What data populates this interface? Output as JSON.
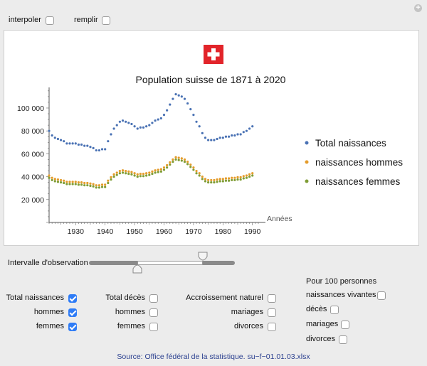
{
  "controls": {
    "interpoler": {
      "label": "interpoler",
      "checked": false
    },
    "remplir": {
      "label": "remplir",
      "checked": false
    }
  },
  "chart_data": {
    "type": "scatter",
    "title": "Population suisse de 1871 à 2020",
    "xlabel": "Années",
    "ylabel": "",
    "xlim": [
      1921,
      1992
    ],
    "ylim": [
      0,
      118000
    ],
    "x_ticks": [
      1930,
      1940,
      1950,
      1960,
      1970,
      1980,
      1990
    ],
    "y_ticks": [
      20000,
      40000,
      60000,
      80000,
      100000
    ],
    "y_tick_labels": [
      "20 000",
      "40 000",
      "60 000",
      "80 000",
      "100 000"
    ],
    "x_tick_labels": [
      "1930",
      "1940",
      "1950",
      "1960",
      "1970",
      "1980",
      "1990"
    ],
    "legend_position": "right",
    "x": [
      1921,
      1922,
      1923,
      1924,
      1925,
      1926,
      1927,
      1928,
      1929,
      1930,
      1931,
      1932,
      1933,
      1934,
      1935,
      1936,
      1937,
      1938,
      1939,
      1940,
      1941,
      1942,
      1943,
      1944,
      1945,
      1946,
      1947,
      1948,
      1949,
      1950,
      1951,
      1952,
      1953,
      1954,
      1955,
      1956,
      1957,
      1958,
      1959,
      1960,
      1961,
      1962,
      1963,
      1964,
      1965,
      1966,
      1967,
      1968,
      1969,
      1970,
      1971,
      1972,
      1973,
      1974,
      1975,
      1976,
      1977,
      1978,
      1979,
      1980,
      1981,
      1982,
      1983,
      1984,
      1985,
      1986,
      1987,
      1988,
      1989,
      1990
    ],
    "series": [
      {
        "name": "Total naissances",
        "color": "#4a72b4",
        "values": [
          80000,
          76000,
          74000,
          73000,
          72000,
          71000,
          69000,
          69000,
          69000,
          69000,
          68000,
          68000,
          67000,
          67000,
          66000,
          65000,
          63000,
          63000,
          64000,
          64000,
          71000,
          77000,
          82000,
          85000,
          88000,
          89000,
          88000,
          87000,
          86000,
          84000,
          82000,
          83000,
          83000,
          84000,
          85000,
          87000,
          89000,
          90000,
          91000,
          94000,
          98000,
          103000,
          108000,
          112000,
          111000,
          110000,
          108000,
          104000,
          99000,
          94000,
          88000,
          84000,
          78000,
          74000,
          72000,
          72000,
          72000,
          73000,
          74000,
          74000,
          75000,
          75000,
          76000,
          76000,
          77000,
          77000,
          79000,
          80000,
          82000,
          84000
        ]
      },
      {
        "name": "naissances hommes",
        "color": "#e49b2a",
        "values": [
          41000,
          39000,
          38000,
          37500,
          37000,
          36500,
          35500,
          35500,
          35500,
          35500,
          35000,
          35000,
          34500,
          34500,
          34000,
          33500,
          32500,
          32500,
          33000,
          33000,
          36500,
          39500,
          42000,
          43500,
          45000,
          45500,
          45000,
          44500,
          44000,
          43000,
          42000,
          42500,
          42500,
          43000,
          43500,
          44500,
          45500,
          46000,
          46500,
          48000,
          50000,
          52500,
          55000,
          57000,
          56500,
          56000,
          55000,
          53000,
          50500,
          48000,
          45000,
          43000,
          40000,
          38000,
          37000,
          37000,
          37000,
          37500,
          38000,
          38000,
          38500,
          38500,
          39000,
          39000,
          39500,
          39500,
          40500,
          41000,
          42000,
          43000
        ]
      },
      {
        "name": "naissances femmes",
        "color": "#7f9d35",
        "values": [
          39000,
          37000,
          36000,
          35500,
          35000,
          34500,
          33500,
          33500,
          33500,
          33500,
          33000,
          33000,
          32500,
          32500,
          32000,
          31500,
          30500,
          30500,
          31000,
          31000,
          34500,
          37500,
          40000,
          41500,
          43000,
          43500,
          43000,
          42500,
          42000,
          41000,
          40000,
          40500,
          40500,
          41000,
          41500,
          42500,
          43500,
          44000,
          44500,
          46000,
          48000,
          50500,
          53000,
          55000,
          54500,
          54000,
          53000,
          51000,
          48500,
          46000,
          43000,
          41000,
          38000,
          36000,
          35000,
          35000,
          35000,
          35500,
          36000,
          36000,
          36500,
          36500,
          37000,
          37000,
          37500,
          37500,
          38500,
          39000,
          40000,
          41000
        ]
      }
    ]
  },
  "slider": {
    "label": "Intervalle d'observation",
    "low": 1921,
    "high": 1992,
    "selected_low": 1921,
    "selected_high": 1990
  },
  "group1": [
    {
      "label": "Total naissances",
      "checked": true
    },
    {
      "label": "hommes",
      "checked": true
    },
    {
      "label": "femmes",
      "checked": true
    }
  ],
  "group2": [
    {
      "label": "Total décès",
      "checked": false
    },
    {
      "label": "hommes",
      "checked": false
    },
    {
      "label": "femmes",
      "checked": false
    }
  ],
  "group3": [
    {
      "label": "Accroissement naturel",
      "checked": false
    },
    {
      "label": "mariages",
      "checked": false
    },
    {
      "label": "divorces",
      "checked": false
    }
  ],
  "group4": {
    "header": "Pour 100 personnes",
    "items": [
      {
        "label": "naissances vivantes",
        "checked": false
      },
      {
        "label": "décès",
        "checked": false
      },
      {
        "label": "mariages",
        "checked": false
      },
      {
        "label": "divorces",
        "checked": false
      }
    ]
  },
  "source": "Source: Office fédéral de la statistique. su−f−01.01.03.xlsx"
}
